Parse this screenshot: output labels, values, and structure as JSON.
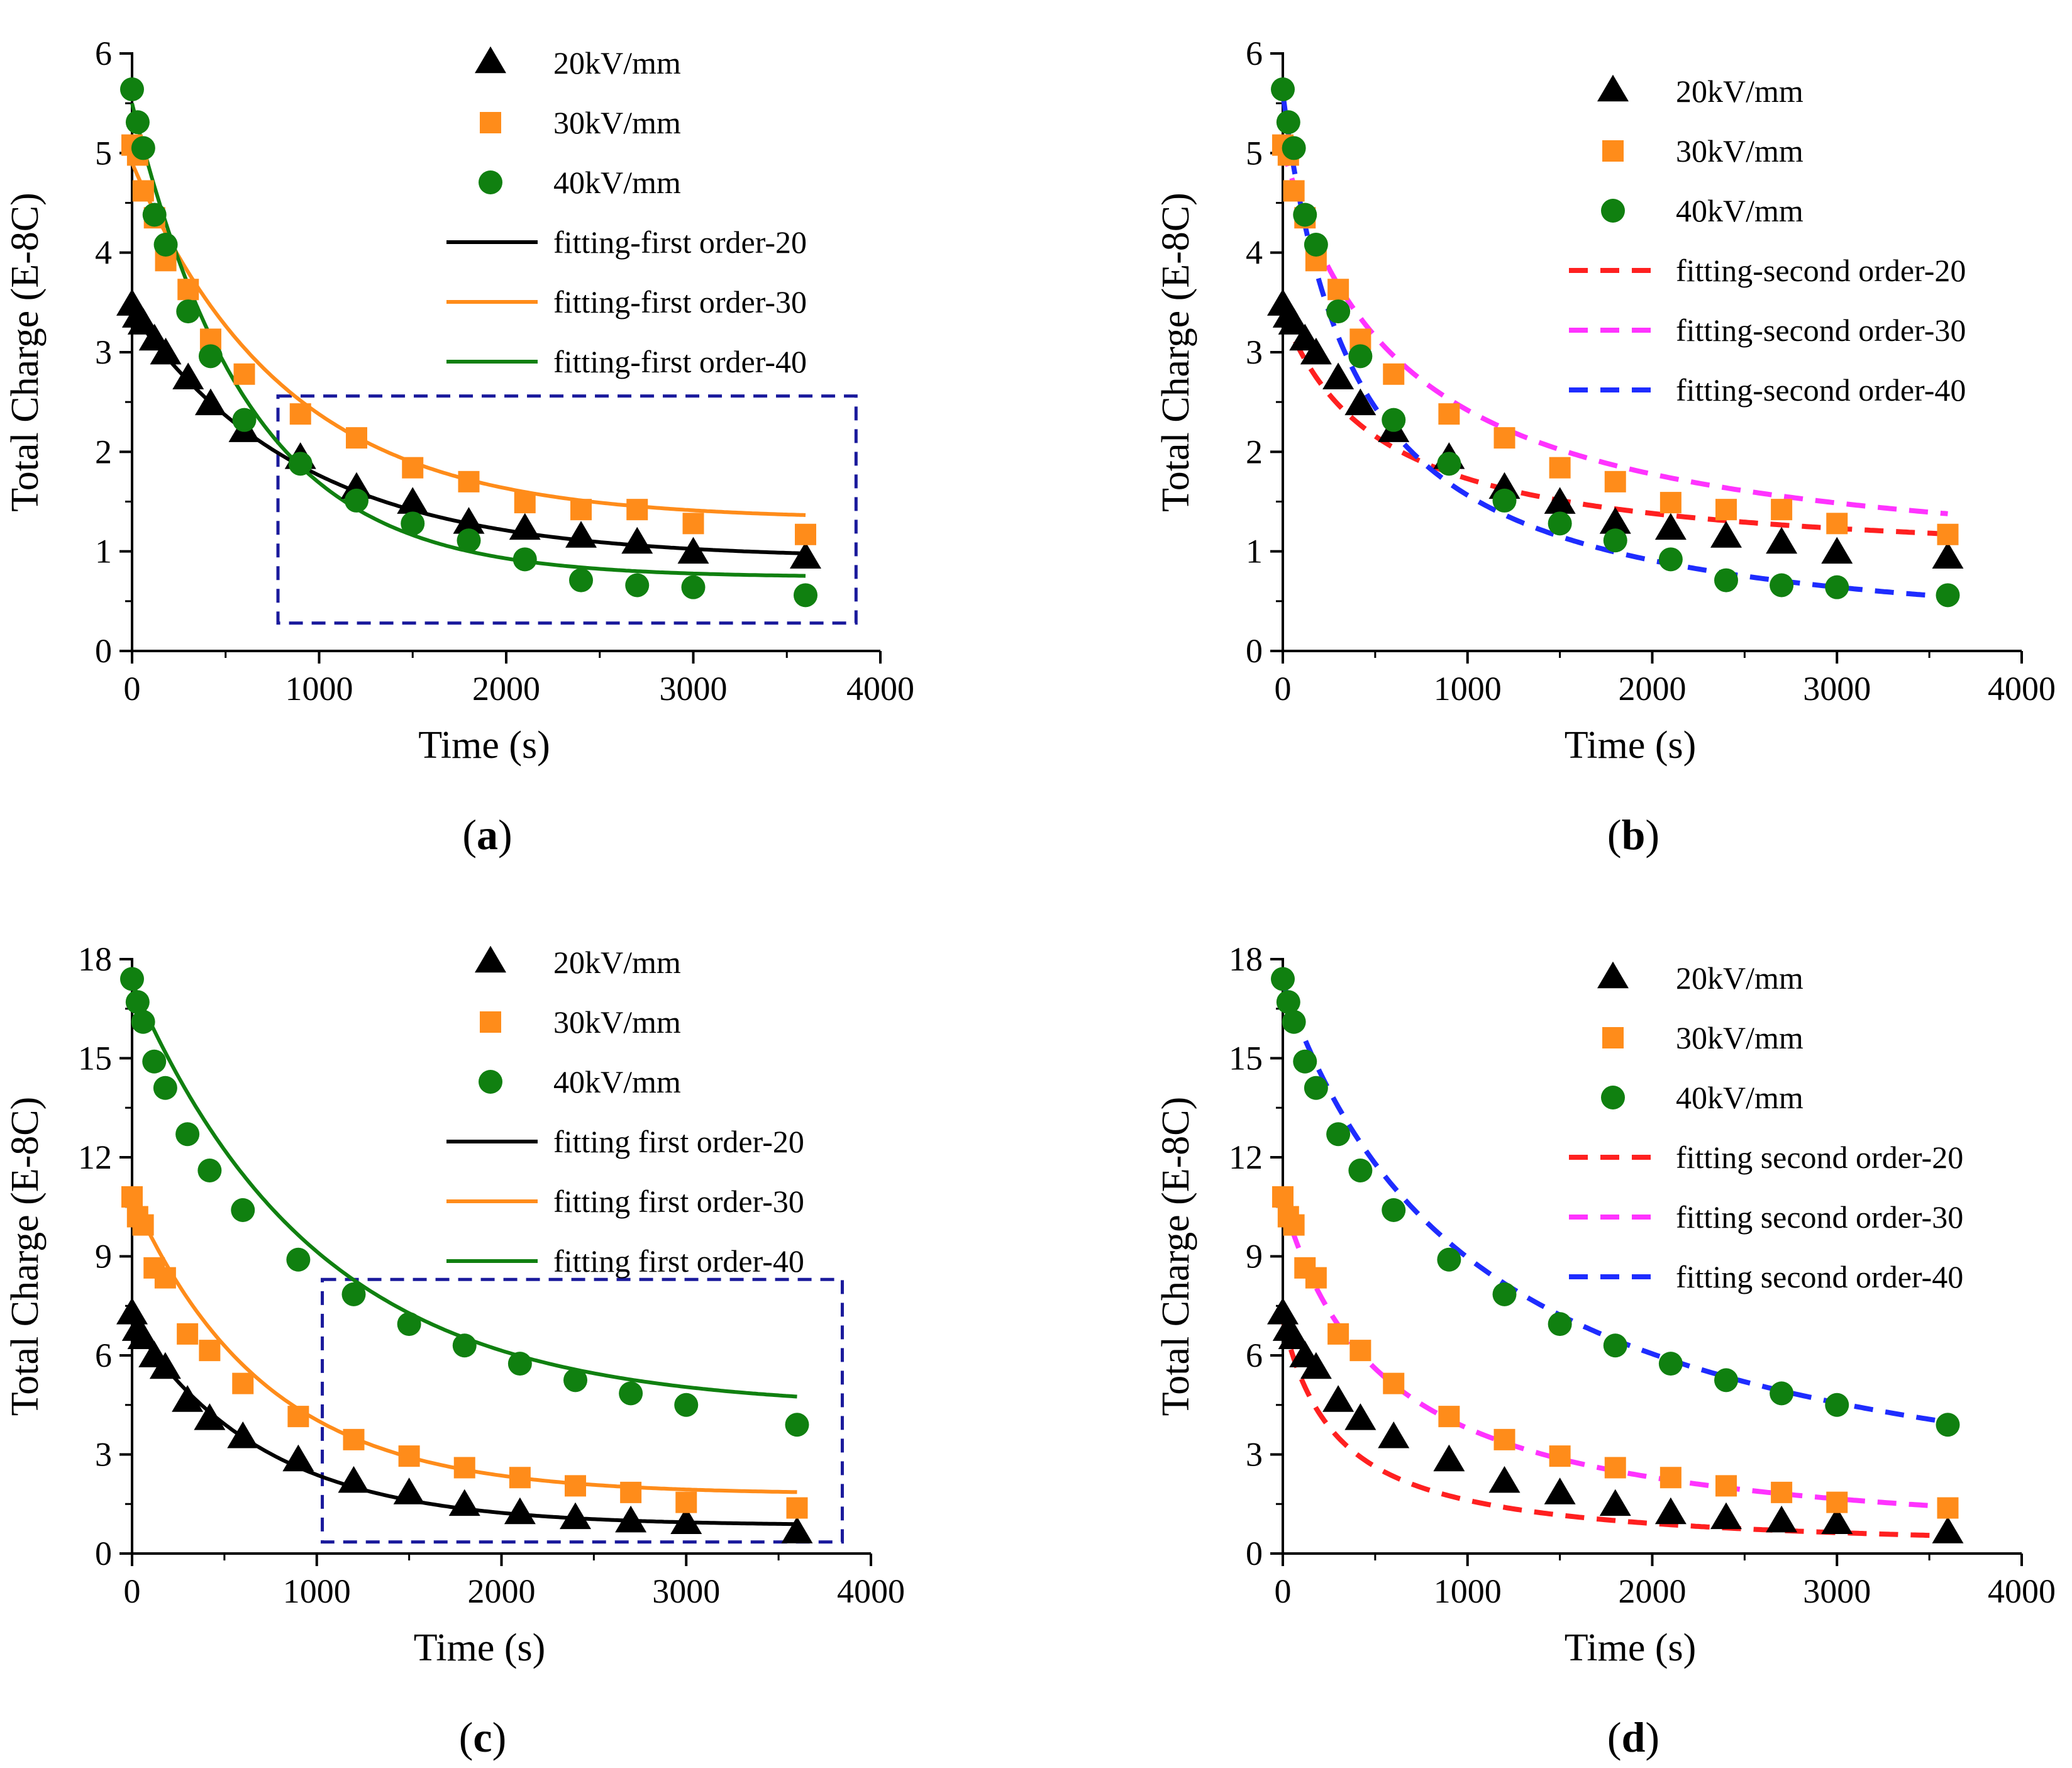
{
  "chart_data": [
    {
      "id": "a",
      "type": "scatter",
      "panel_label": "a",
      "xlabel": "Time (s)",
      "ylabel": "Total Charge (E-8C)",
      "xlim": [
        0,
        4000
      ],
      "ylim": [
        0,
        6
      ],
      "xticks": [
        "0",
        "1000",
        "2000",
        "3000",
        "4000"
      ],
      "yticks": [
        "0",
        "1",
        "2",
        "3",
        "4",
        "5",
        "6"
      ],
      "x": [
        0,
        30,
        60,
        120,
        180,
        300,
        420,
        600,
        900,
        1200,
        1500,
        1800,
        2100,
        2400,
        2700,
        3000,
        3600
      ],
      "series": [
        {
          "name": "20kV/mm",
          "marker": "triangle",
          "color": "#000000",
          "values": [
            3.47,
            3.35,
            3.28,
            3.12,
            2.98,
            2.73,
            2.47,
            2.2,
            1.93,
            1.63,
            1.48,
            1.28,
            1.22,
            1.14,
            1.08,
            0.98,
            0.93
          ]
        },
        {
          "name": "30kV/mm",
          "marker": "square",
          "color": "#ff8c1a",
          "values": [
            5.08,
            4.98,
            4.62,
            4.35,
            3.92,
            3.63,
            3.13,
            2.78,
            2.38,
            2.14,
            1.84,
            1.7,
            1.49,
            1.42,
            1.42,
            1.28,
            1.17
          ]
        },
        {
          "name": "40kV/mm",
          "marker": "circle",
          "color": "#108010",
          "values": [
            5.64,
            5.31,
            5.05,
            4.38,
            4.08,
            3.41,
            2.96,
            2.32,
            1.88,
            1.51,
            1.28,
            1.11,
            0.92,
            0.71,
            0.66,
            0.64,
            0.56
          ]
        }
      ],
      "fits": [
        {
          "name": "fitting-first order-20",
          "style": "solid",
          "color": "#000000",
          "model": "exp",
          "params": {
            "q0": 3.4,
            "qinf": 0.93,
            "tau": 920
          }
        },
        {
          "name": "fitting-first order-30",
          "style": "solid",
          "color": "#ff8c1a",
          "model": "exp",
          "params": {
            "q0": 4.9,
            "qinf": 1.32,
            "tau": 820
          }
        },
        {
          "name": "fitting-first order-40",
          "style": "solid",
          "color": "#108010",
          "model": "exp",
          "params": {
            "q0": 5.5,
            "qinf": 0.74,
            "tau": 620
          }
        }
      ],
      "highlight_box": {
        "x0": 780,
        "x1": 3870,
        "y0": 0.28,
        "y1": 2.56
      }
    },
    {
      "id": "b",
      "type": "scatter",
      "panel_label": "b",
      "xlabel": "Time (s)",
      "ylabel": "Total Charge (E-8C)",
      "xlim": [
        0,
        4000
      ],
      "ylim": [
        0,
        6
      ],
      "xticks": [
        "0",
        "1000",
        "2000",
        "3000",
        "4000"
      ],
      "yticks": [
        "0",
        "1",
        "2",
        "3",
        "4",
        "5",
        "6"
      ],
      "x": [
        0,
        30,
        60,
        120,
        180,
        300,
        420,
        600,
        900,
        1200,
        1500,
        1800,
        2100,
        2400,
        2700,
        3000,
        3600
      ],
      "series": [
        {
          "name": "20kV/mm",
          "marker": "triangle",
          "color": "#000000",
          "values": [
            3.47,
            3.35,
            3.28,
            3.12,
            2.98,
            2.73,
            2.47,
            2.2,
            1.93,
            1.63,
            1.48,
            1.28,
            1.22,
            1.14,
            1.08,
            0.98,
            0.93
          ]
        },
        {
          "name": "30kV/mm",
          "marker": "square",
          "color": "#ff8c1a",
          "values": [
            5.08,
            4.98,
            4.62,
            4.35,
            3.92,
            3.63,
            3.13,
            2.78,
            2.38,
            2.14,
            1.84,
            1.7,
            1.49,
            1.42,
            1.42,
            1.28,
            1.17
          ]
        },
        {
          "name": "40kV/mm",
          "marker": "circle",
          "color": "#108010",
          "values": [
            5.64,
            5.31,
            5.05,
            4.38,
            4.08,
            3.41,
            2.96,
            2.32,
            1.88,
            1.51,
            1.28,
            1.11,
            0.92,
            0.71,
            0.66,
            0.64,
            0.56
          ]
        }
      ],
      "fits": [
        {
          "name": "fitting-second order-20",
          "style": "dashed",
          "color": "#ff2020",
          "model": "hyp",
          "params": {
            "q0": 3.4,
            "qinf": 0.85,
            "k": 0.0019
          }
        },
        {
          "name": "fitting-second order-30",
          "style": "dashed",
          "color": "#ff33ff",
          "model": "hyp",
          "params": {
            "q0": 5.05,
            "qinf": 0.72,
            "k": 0.00155
          }
        },
        {
          "name": "fitting-second order-40",
          "style": "dashed",
          "color": "#1e2cff",
          "model": "hyp",
          "params": {
            "q0": 5.6,
            "qinf": 0.0,
            "k": 0.00258
          }
        }
      ]
    },
    {
      "id": "c",
      "type": "scatter",
      "panel_label": "c",
      "xlabel": "Time (s)",
      "ylabel": "Total Charge (E-8C)",
      "xlim": [
        0,
        4000
      ],
      "ylim": [
        0,
        18
      ],
      "xticks": [
        "0",
        "1000",
        "2000",
        "3000",
        "4000"
      ],
      "yticks": [
        "0",
        "3",
        "6",
        "9",
        "12",
        "15",
        "18"
      ],
      "x": [
        0,
        30,
        60,
        120,
        180,
        300,
        420,
        600,
        900,
        1200,
        1500,
        1800,
        2100,
        2400,
        2700,
        3000,
        3600
      ],
      "series": [
        {
          "name": "20kV/mm",
          "marker": "triangle",
          "color": "#000000",
          "values": [
            7.25,
            6.75,
            6.5,
            5.95,
            5.6,
            4.6,
            4.05,
            3.5,
            2.8,
            2.15,
            1.8,
            1.45,
            1.2,
            1.05,
            0.95,
            0.9,
            0.62
          ]
        },
        {
          "name": "30kV/mm",
          "marker": "square",
          "color": "#ff8c1a",
          "values": [
            10.8,
            10.2,
            9.95,
            8.65,
            8.35,
            6.65,
            6.15,
            5.15,
            4.15,
            3.45,
            2.95,
            2.6,
            2.3,
            2.05,
            1.85,
            1.55,
            1.38
          ]
        },
        {
          "name": "40kV/mm",
          "marker": "circle",
          "color": "#108010",
          "values": [
            17.4,
            16.7,
            16.1,
            14.9,
            14.1,
            12.7,
            11.6,
            10.4,
            8.9,
            7.85,
            6.95,
            6.3,
            5.75,
            5.25,
            4.85,
            4.5,
            3.9
          ]
        }
      ],
      "fits": [
        {
          "name": "fitting first order-20",
          "style": "solid",
          "color": "#000000",
          "model": "exp",
          "params": {
            "q0": 7.0,
            "qinf": 0.85,
            "tau": 720
          }
        },
        {
          "name": "fitting first order-30",
          "style": "solid",
          "color": "#ff8c1a",
          "model": "exp",
          "params": {
            "q0": 10.8,
            "qinf": 1.8,
            "tau": 720
          }
        },
        {
          "name": "fitting first order-40",
          "style": "solid",
          "color": "#108010",
          "model": "exp",
          "params": {
            "q0": 17.3,
            "qinf": 4.4,
            "tau": 1000
          }
        }
      ],
      "highlight_box": {
        "x0": 1030,
        "x1": 3845,
        "y0": 0.35,
        "y1": 8.3
      }
    },
    {
      "id": "d",
      "type": "scatter",
      "panel_label": "d",
      "xlabel": "Time (s)",
      "ylabel": "Total Charge (E-8C)",
      "xlim": [
        0,
        4000
      ],
      "ylim": [
        0,
        18
      ],
      "xticks": [
        "0",
        "1000",
        "2000",
        "3000",
        "4000"
      ],
      "yticks": [
        "0",
        "3",
        "6",
        "9",
        "12",
        "15",
        "18"
      ],
      "x": [
        0,
        30,
        60,
        120,
        180,
        300,
        420,
        600,
        900,
        1200,
        1500,
        1800,
        2100,
        2400,
        2700,
        3000,
        3600
      ],
      "series": [
        {
          "name": "20kV/mm",
          "marker": "triangle",
          "color": "#000000",
          "values": [
            7.25,
            6.75,
            6.5,
            5.95,
            5.6,
            4.6,
            4.05,
            3.5,
            2.8,
            2.15,
            1.8,
            1.45,
            1.2,
            1.05,
            0.95,
            0.9,
            0.62
          ]
        },
        {
          "name": "30kV/mm",
          "marker": "square",
          "color": "#ff8c1a",
          "values": [
            10.8,
            10.2,
            9.95,
            8.65,
            8.35,
            6.65,
            6.15,
            5.15,
            4.15,
            3.45,
            2.95,
            2.6,
            2.3,
            2.05,
            1.85,
            1.55,
            1.38
          ]
        },
        {
          "name": "40kV/mm",
          "marker": "circle",
          "color": "#108010",
          "values": [
            17.4,
            16.7,
            16.1,
            14.9,
            14.1,
            12.7,
            11.6,
            10.4,
            8.9,
            7.85,
            6.95,
            6.3,
            5.75,
            5.25,
            4.85,
            4.5,
            3.9
          ]
        }
      ],
      "fits": [
        {
          "name": "fitting second order-20",
          "style": "dashed",
          "color": "#ff2020",
          "model": "hyp",
          "params": {
            "q0": 7.1,
            "qinf": 0.0,
            "k": 0.0034
          }
        },
        {
          "name": "fitting second order-30",
          "style": "dashed",
          "color": "#ff33ff",
          "model": "hyp",
          "params": {
            "q0": 10.7,
            "qinf": 0.0,
            "k": 0.00182
          }
        },
        {
          "name": "fitting second order-40",
          "style": "dashed",
          "color": "#1e2cff",
          "model": "hyp",
          "params": {
            "q0": 17.3,
            "qinf": 0.0,
            "k": 0.00093
          }
        }
      ]
    }
  ]
}
